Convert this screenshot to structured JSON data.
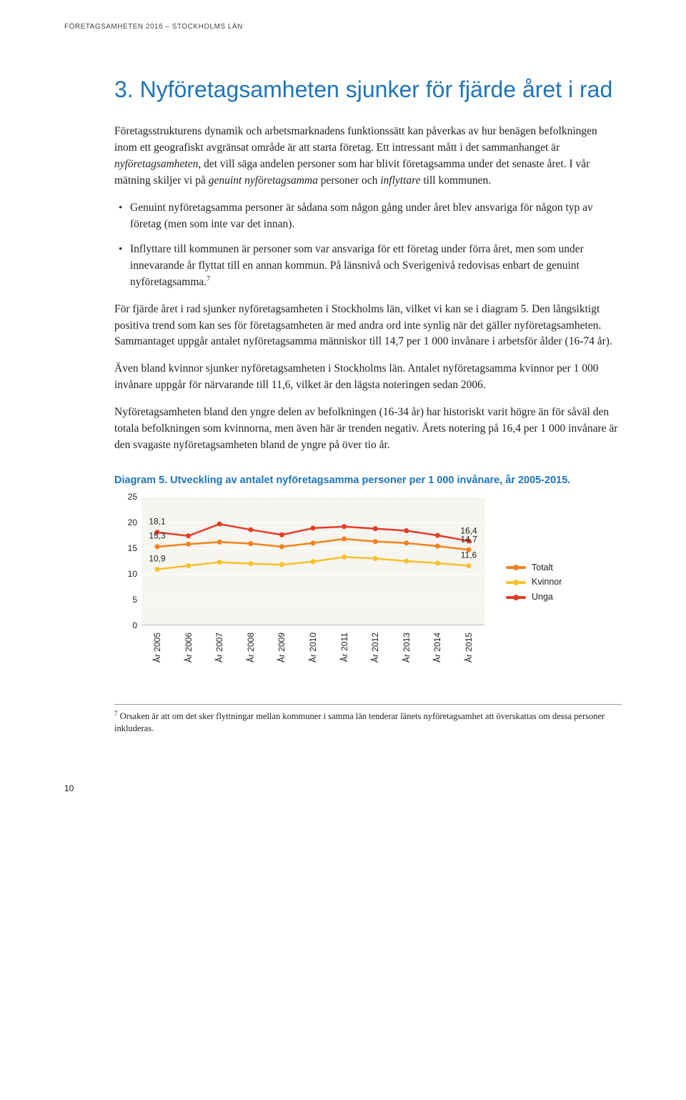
{
  "running_head": "FÖRETAGSAMHETEN 2016 – STOCKHOLMS LÄN",
  "title": "3. Nyföretagsamheten sjunker för fjärde året i rad",
  "paragraphs": {
    "p1a": "Företagsstrukturens dynamik och arbetsmarknadens funktionssätt kan påverkas av hur benägen befolkningen inom ett geografiskt avgränsat område är att starta företag. Ett intressant mått i det sammanhanget är ",
    "p1b": "nyföretagsamheten",
    "p1c": ", det vill säga andelen personer som har blivit företagsamma under det senaste året. I vår mätning skiljer vi på ",
    "p1d": "genuint nyföretagsamma",
    "p1e": " personer och ",
    "p1f": "inflyttare",
    "p1g": " till kommunen.",
    "b1": "Genuint nyföretagsamma personer är sådana som någon gång under året blev ansvariga för någon typ av företag (men som inte var det innan).",
    "b2a": "Inflyttare till kommunen är personer som var ansvariga för ett företag under förra året, men som under innevarande år flyttat till en annan kommun. På länsnivå och Sverigenivå redovisas enbart de genuint nyföretagsamma.",
    "b2_sup": "7",
    "p2": "För fjärde året i rad sjunker nyföretagsamheten i Stockholms län, vilket vi kan se i diagram 5. Den långsiktigt positiva trend som kan ses för företagsamheten är med andra ord inte synlig när det gäller nyföretagsamheten. Sammantaget uppgår antalet nyföretagsamma människor till 14,7 per 1 000 invånare i arbetsför ålder (16-74 år).",
    "p3": "Även bland kvinnor sjunker nyföretagsamheten i Stockholms län. Antalet nyföretagsamma kvinnor per 1 000 invånare uppgår för närvarande till 11,6, vilket är den lägsta noteringen sedan 2006.",
    "p4": "Nyföretagsamheten bland den yngre delen av befolkningen (16-34 år) har historiskt varit högre än för såväl den totala befolkningen som kvinnorna, men även här är trenden negativ. Årets notering på 16,4 per 1 000 invånare är den svagaste nyföretagsamheten bland de yngre på över tio år."
  },
  "diagram": {
    "title": "Diagram 5. Utveckling av antalet nyföretagsamma personer per 1 000 invånare, år 2005-2015.",
    "type": "line",
    "background_color": "#f6f5f0",
    "grid_color": "#ffffff",
    "ylim": [
      0,
      25
    ],
    "yticks": [
      0,
      5,
      10,
      15,
      20,
      25
    ],
    "categories": [
      "År 2005",
      "År 2006",
      "År 2007",
      "År 2008",
      "År 2009",
      "År 2010",
      "År 2011",
      "År 2012",
      "År 2013",
      "År 2014",
      "År 2015"
    ],
    "series": [
      {
        "name": "Totalt",
        "color": "#f0831f",
        "values": [
          15.3,
          15.8,
          16.2,
          15.9,
          15.3,
          16.0,
          16.8,
          16.3,
          16.0,
          15.4,
          14.7
        ]
      },
      {
        "name": "Kvinnor",
        "color": "#f6c22b",
        "values": [
          10.9,
          11.6,
          12.3,
          12.0,
          11.8,
          12.4,
          13.3,
          13.0,
          12.5,
          12.1,
          11.6
        ]
      },
      {
        "name": "Unga",
        "color": "#e43d26",
        "values": [
          18.1,
          17.4,
          19.7,
          18.6,
          17.6,
          18.9,
          19.2,
          18.8,
          18.4,
          17.5,
          16.4
        ]
      }
    ],
    "point_labels": [
      {
        "series": 2,
        "i": 0,
        "text": "18,1"
      },
      {
        "series": 0,
        "i": 0,
        "text": "15,3"
      },
      {
        "series": 1,
        "i": 0,
        "text": "10,9"
      },
      {
        "series": 2,
        "i": 10,
        "text": "16,4"
      },
      {
        "series": 0,
        "i": 10,
        "text": "14,7"
      },
      {
        "series": 1,
        "i": 10,
        "text": "11,6"
      }
    ],
    "line_width": 2.5,
    "marker_radius": 3.5,
    "label_fontsize": 12
  },
  "legend": {
    "items": [
      {
        "label": "Totalt",
        "color": "#f0831f"
      },
      {
        "label": "Kvinnor",
        "color": "#f6c22b"
      },
      {
        "label": "Unga",
        "color": "#e43d26"
      }
    ]
  },
  "footnote": {
    "sup": "7",
    "text": " Orsaken är att om det sker flyttningar mellan kommuner i samma län tenderar länets nyföretagsamhet att överskattas om dessa personer inkluderas."
  },
  "page_number": "10"
}
